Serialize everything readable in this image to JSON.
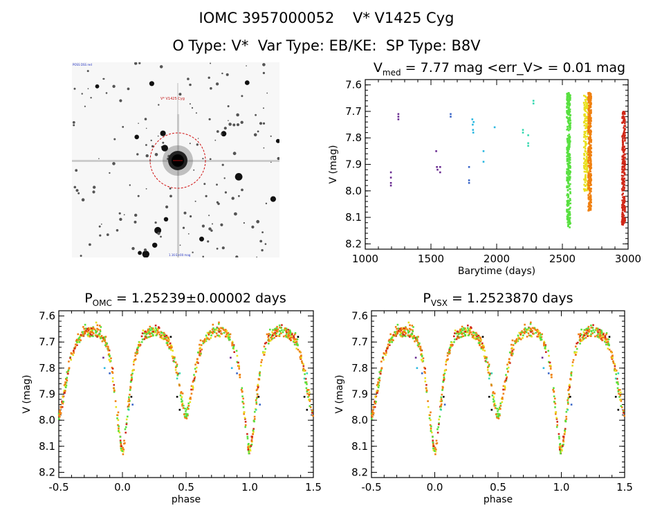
{
  "header": {
    "line1_id": "IOMC 3957000052",
    "line1_name": "V* V1425 Cyg",
    "line2_otype": "O Type: V*",
    "line2_vartype": "Var Type: EB/KE:",
    "line2_sptype": "SP Type: B8V"
  },
  "image": {
    "label_top": "V* V1425 Cyg",
    "corner_tl": "POSS DSS red",
    "corner_bottom": "1.16 E+00 mag"
  },
  "colors": {
    "purple": "#6a2c91",
    "blue": "#3a66c8",
    "cyan": "#29b7e0",
    "teal": "#35d8b0",
    "green": "#58e040",
    "yellow": "#e8e020",
    "orange": "#f08010",
    "red": "#d02818",
    "black": "#000000"
  },
  "chart_data": [
    {
      "id": "timeseries",
      "type": "scatter",
      "title_main": "V",
      "title_sub": "med",
      "title_rest": " = 7.77 mag <err_V> = 0.01 mag",
      "xlabel": "Barytime (days)",
      "ylabel": "V (mag)",
      "xlim": [
        1000,
        3000
      ],
      "ylim": [
        8.22,
        7.58
      ],
      "xticks": [
        "1000",
        "1500",
        "2000",
        "2500",
        "3000"
      ],
      "yticks": [
        "7.6",
        "7.7",
        "7.8",
        "7.9",
        "8.0",
        "8.1",
        "8.2"
      ],
      "groups": [
        {
          "color": "purple",
          "points": [
            [
              1195,
              7.93
            ],
            [
              1195,
              7.95
            ],
            [
              1195,
              7.97
            ],
            [
              1195,
              7.98
            ],
            [
              1252,
              7.71
            ],
            [
              1252,
              7.72
            ],
            [
              1252,
              7.73
            ],
            [
              1540,
              7.85
            ],
            [
              1545,
              7.91
            ],
            [
              1550,
              7.92
            ],
            [
              1570,
              7.91
            ],
            [
              1570,
              7.93
            ]
          ]
        },
        {
          "color": "blue",
          "points": [
            [
              1650,
              7.71
            ],
            [
              1650,
              7.72
            ],
            [
              1790,
              7.91
            ],
            [
              1790,
              7.96
            ],
            [
              1790,
              7.97
            ]
          ]
        },
        {
          "color": "cyan",
          "points": [
            [
              1815,
              7.73
            ],
            [
              1818,
              7.75
            ],
            [
              1820,
              7.77
            ],
            [
              1822,
              7.78
            ],
            [
              1825,
              7.74
            ],
            [
              1900,
              7.85
            ],
            [
              1900,
              7.89
            ],
            [
              1985,
              7.76
            ]
          ]
        },
        {
          "color": "teal",
          "points": [
            [
              2200,
              7.77
            ],
            [
              2200,
              7.78
            ],
            [
              2240,
              7.79
            ],
            [
              2240,
              7.82
            ],
            [
              2240,
              7.83
            ],
            [
              2280,
              7.66
            ],
            [
              2280,
              7.67
            ]
          ]
        }
      ],
      "bands": [
        {
          "x": 2548,
          "halfwidth": 14,
          "ymin": 7.63,
          "ymax": 8.14,
          "color": "green",
          "count": 340
        },
        {
          "x": 2680,
          "halfwidth": 16,
          "ymin": 7.64,
          "ymax": 8.0,
          "color": "yellow",
          "count": 160
        },
        {
          "x": 2708,
          "halfwidth": 12,
          "ymin": 7.63,
          "ymax": 8.08,
          "color": "orange",
          "count": 320
        },
        {
          "x": 2965,
          "halfwidth": 12,
          "ymin": 7.7,
          "ymax": 8.13,
          "color": "red",
          "count": 220
        }
      ]
    },
    {
      "id": "phase_omc",
      "type": "scatter",
      "title_main": "P",
      "title_sub": "OMC",
      "title_rest": " = 1.25239±0.00002 days",
      "xlabel": "phase",
      "ylabel": "V (mag)",
      "xlim": [
        -0.5,
        1.5
      ],
      "ylim": [
        8.22,
        7.58
      ],
      "xticks": [
        "-0.5",
        "0.0",
        "0.5",
        "1.0",
        "1.5"
      ],
      "yticks": [
        "7.6",
        "7.7",
        "7.8",
        "7.9",
        "8.0",
        "8.1",
        "8.2"
      ]
    },
    {
      "id": "phase_vsx",
      "type": "scatter",
      "title_main": "P",
      "title_sub": "VSX",
      "title_rest": " = 1.2523870 days",
      "xlabel": "phase",
      "ylabel": "V (mag)",
      "xlim": [
        -0.5,
        1.5
      ],
      "ylim": [
        8.22,
        7.58
      ],
      "xticks": [
        "-0.5",
        "0.0",
        "0.5",
        "1.0",
        "1.5"
      ],
      "yticks": [
        "7.6",
        "7.7",
        "7.8",
        "7.9",
        "8.0",
        "8.1",
        "8.2"
      ]
    }
  ],
  "phase_curve": {
    "primary_min_phase": 0.0,
    "primary_min_mag": 8.12,
    "secondary_min_phase": 0.5,
    "secondary_min_mag": 7.98,
    "max_mag": 7.68,
    "max_phases": [
      0.25,
      0.75
    ],
    "color_mix": [
      "orange",
      "orange",
      "green",
      "yellow",
      "red",
      "orange",
      "green"
    ],
    "extra_points": [
      {
        "phase": 0.38,
        "mag": 7.68,
        "color": "black"
      },
      {
        "phase": 0.43,
        "mag": 7.91,
        "color": "black"
      },
      {
        "phase": 0.45,
        "mag": 7.96,
        "color": "black"
      },
      {
        "phase": 0.07,
        "mag": 7.91,
        "color": "black"
      },
      {
        "phase": -0.1,
        "mag": 7.82,
        "color": "blue"
      },
      {
        "phase": 0.43,
        "mag": 7.84,
        "color": "teal"
      },
      {
        "phase": 0.45,
        "mag": 7.82,
        "color": "teal"
      },
      {
        "phase": 0.05,
        "mag": 7.96,
        "color": "teal"
      },
      {
        "phase": 0.08,
        "mag": 7.94,
        "color": "blue"
      },
      {
        "phase": -0.15,
        "mag": 7.76,
        "color": "purple"
      },
      {
        "phase": -0.14,
        "mag": 7.8,
        "color": "cyan"
      }
    ]
  }
}
